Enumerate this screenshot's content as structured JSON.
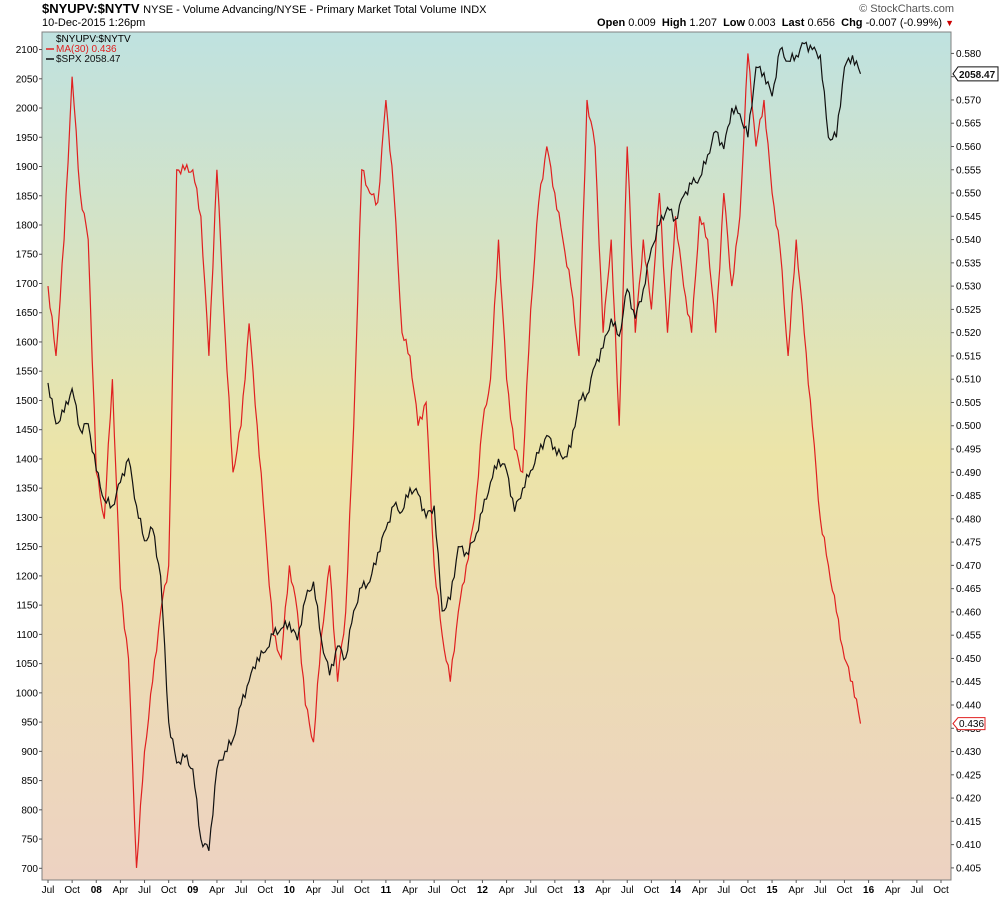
{
  "header": {
    "symbol": "$NYUPV:$NYTV",
    "description": "NYSE - Volume Advancing/NYSE - Primary Market Total Volume",
    "exchange": "INDX",
    "date": "10-Dec-2015 1:26pm",
    "brand": "© StockCharts.com",
    "quote": {
      "open_label": "Open",
      "open": "0.009",
      "high_label": "High",
      "high": "1.207",
      "low_label": "Low",
      "low": "0.003",
      "last_label": "Last",
      "last": "0.656",
      "chg_label": "Chg",
      "chg": "-0.007 (-0.99%)"
    }
  },
  "colors": {
    "ratio": "#e02020",
    "spx": "#111111",
    "bg_top": "#bfe2e0",
    "bg_mid": "#ece4a8",
    "bg_bottom": "#edd2c2"
  },
  "chart_data": {
    "type": "line",
    "legend": [
      {
        "label": "$NYUPV:$NYTV",
        "color": "none"
      },
      {
        "label": "MA(30) 0.436",
        "color": "#e02020"
      },
      {
        "label": "$SPX 2058.47",
        "color": "#111111"
      }
    ],
    "legend_position": "top-left",
    "grid": false,
    "left_axis": {
      "ticks": [
        700,
        750,
        800,
        850,
        900,
        950,
        1000,
        1050,
        1100,
        1150,
        1200,
        1250,
        1300,
        1350,
        1400,
        1450,
        1500,
        1550,
        1600,
        1650,
        1700,
        1750,
        1800,
        1850,
        1900,
        1950,
        2000,
        2050,
        2100
      ],
      "range": [
        680,
        2130
      ]
    },
    "right_axis": {
      "ticks": [
        "0.405",
        "0.410",
        "0.415",
        "0.420",
        "0.425",
        "0.430",
        "0.435",
        "0.440",
        "0.445",
        "0.450",
        "0.455",
        "0.460",
        "0.465",
        "0.470",
        "0.475",
        "0.480",
        "0.485",
        "0.490",
        "0.495",
        "0.500",
        "0.505",
        "0.510",
        "0.515",
        "0.520",
        "0.525",
        "0.530",
        "0.535",
        "0.540",
        "0.545",
        "0.550",
        "0.555",
        "0.560",
        "0.565",
        "0.570",
        "0.575",
        "0.580"
      ],
      "range": [
        0.4024,
        0.5846
      ]
    },
    "current_labels": {
      "spx": "2058.47",
      "ratio": "0.436"
    },
    "x_axis": {
      "labels": [
        "Jul",
        "Oct",
        "08",
        "Apr",
        "Jul",
        "Oct",
        "09",
        "Apr",
        "Jul",
        "Oct",
        "10",
        "Apr",
        "Jul",
        "Oct",
        "11",
        "Apr",
        "Jul",
        "Oct",
        "12",
        "Apr",
        "Jul",
        "Oct",
        "13",
        "Apr",
        "Jul",
        "Oct",
        "14",
        "Apr",
        "Jul",
        "Oct",
        "15",
        "Apr",
        "Jul",
        "Oct",
        "16",
        "Apr",
        "Jul",
        "Oct"
      ],
      "year_labels": [
        "08",
        "09",
        "10",
        "11",
        "12",
        "13",
        "14",
        "15",
        "16"
      ],
      "start": "2007-07",
      "end": "2016-10"
    },
    "series": [
      {
        "name": "$SPX 2058.47",
        "axis": "left",
        "x": [
          "2007-07",
          "2007-08",
          "2007-09",
          "2007-10",
          "2007-11",
          "2007-12",
          "2008-01",
          "2008-02",
          "2008-03",
          "2008-04",
          "2008-05",
          "2008-06",
          "2008-07",
          "2008-08",
          "2008-09",
          "2008-10",
          "2008-11",
          "2008-12",
          "2009-01",
          "2009-02",
          "2009-03",
          "2009-04",
          "2009-05",
          "2009-06",
          "2009-07",
          "2009-08",
          "2009-09",
          "2009-10",
          "2009-11",
          "2009-12",
          "2010-01",
          "2010-02",
          "2010-03",
          "2010-04",
          "2010-05",
          "2010-06",
          "2010-07",
          "2010-08",
          "2010-09",
          "2010-10",
          "2010-11",
          "2010-12",
          "2011-01",
          "2011-02",
          "2011-03",
          "2011-04",
          "2011-05",
          "2011-06",
          "2011-07",
          "2011-08",
          "2011-09",
          "2011-10",
          "2011-11",
          "2011-12",
          "2012-01",
          "2012-02",
          "2012-03",
          "2012-04",
          "2012-05",
          "2012-06",
          "2012-07",
          "2012-08",
          "2012-09",
          "2012-10",
          "2012-11",
          "2012-12",
          "2013-01",
          "2013-02",
          "2013-03",
          "2013-04",
          "2013-05",
          "2013-06",
          "2013-07",
          "2013-08",
          "2013-09",
          "2013-10",
          "2013-11",
          "2013-12",
          "2014-01",
          "2014-02",
          "2014-03",
          "2014-04",
          "2014-05",
          "2014-06",
          "2014-07",
          "2014-08",
          "2014-09",
          "2014-10",
          "2014-11",
          "2014-12",
          "2015-01",
          "2015-02",
          "2015-03",
          "2015-04",
          "2015-05",
          "2015-06",
          "2015-07",
          "2015-08",
          "2015-09",
          "2015-10",
          "2015-11",
          "2015-12"
        ],
        "values": [
          1530,
          1460,
          1480,
          1520,
          1450,
          1460,
          1380,
          1330,
          1320,
          1360,
          1400,
          1320,
          1260,
          1280,
          1200,
          950,
          880,
          890,
          870,
          750,
          730,
          870,
          900,
          920,
          980,
          1020,
          1060,
          1070,
          1100,
          1110,
          1120,
          1090,
          1160,
          1190,
          1090,
          1030,
          1080,
          1060,
          1140,
          1180,
          1190,
          1240,
          1280,
          1320,
          1310,
          1350,
          1340,
          1300,
          1320,
          1140,
          1160,
          1250,
          1240,
          1260,
          1310,
          1360,
          1400,
          1380,
          1310,
          1350,
          1380,
          1410,
          1440,
          1420,
          1400,
          1420,
          1500,
          1510,
          1560,
          1590,
          1640,
          1610,
          1690,
          1640,
          1690,
          1760,
          1800,
          1830,
          1810,
          1850,
          1870,
          1880,
          1920,
          1960,
          1930,
          2000,
          1990,
          1950,
          2070,
          2060,
          2020,
          2100,
          2080,
          2090,
          2110,
          2100,
          2090,
          1950,
          1950,
          2070,
          2090,
          2058.47
        ]
      },
      {
        "name": "MA(30) 0.436",
        "axis": "right",
        "x": [
          "2007-07",
          "2007-08",
          "2007-09",
          "2007-10",
          "2007-11",
          "2007-12",
          "2008-01",
          "2008-02",
          "2008-03",
          "2008-04",
          "2008-05",
          "2008-06",
          "2008-07",
          "2008-08",
          "2008-09",
          "2008-10",
          "2008-11",
          "2008-12",
          "2009-01",
          "2009-02",
          "2009-03",
          "2009-04",
          "2009-05",
          "2009-06",
          "2009-07",
          "2009-08",
          "2009-09",
          "2009-10",
          "2009-11",
          "2009-12",
          "2010-01",
          "2010-02",
          "2010-03",
          "2010-04",
          "2010-05",
          "2010-06",
          "2010-07",
          "2010-08",
          "2010-09",
          "2010-10",
          "2010-11",
          "2010-12",
          "2011-01",
          "2011-02",
          "2011-03",
          "2011-04",
          "2011-05",
          "2011-06",
          "2011-07",
          "2011-08",
          "2011-09",
          "2011-10",
          "2011-11",
          "2011-12",
          "2012-01",
          "2012-02",
          "2012-03",
          "2012-04",
          "2012-05",
          "2012-06",
          "2012-07",
          "2012-08",
          "2012-09",
          "2012-10",
          "2012-11",
          "2012-12",
          "2013-01",
          "2013-02",
          "2013-03",
          "2013-04",
          "2013-05",
          "2013-06",
          "2013-07",
          "2013-08",
          "2013-09",
          "2013-10",
          "2013-11",
          "2013-12",
          "2014-01",
          "2014-02",
          "2014-03",
          "2014-04",
          "2014-05",
          "2014-06",
          "2014-07",
          "2014-08",
          "2014-09",
          "2014-10",
          "2014-11",
          "2014-12",
          "2015-01",
          "2015-02",
          "2015-03",
          "2015-04",
          "2015-05",
          "2015-06",
          "2015-07",
          "2015-08",
          "2015-09",
          "2015-10",
          "2015-11",
          "2015-12"
        ],
        "values": [
          0.53,
          0.515,
          0.54,
          0.575,
          0.55,
          0.54,
          0.49,
          0.48,
          0.51,
          0.465,
          0.45,
          0.405,
          0.43,
          0.445,
          0.46,
          0.47,
          0.555,
          0.555,
          0.555,
          0.545,
          0.515,
          0.555,
          0.52,
          0.49,
          0.5,
          0.522,
          0.5,
          0.478,
          0.455,
          0.45,
          0.47,
          0.46,
          0.44,
          0.432,
          0.455,
          0.47,
          0.445,
          0.46,
          0.5,
          0.555,
          0.55,
          0.548,
          0.57,
          0.55,
          0.52,
          0.515,
          0.5,
          0.505,
          0.47,
          0.455,
          0.445,
          0.46,
          0.47,
          0.48,
          0.5,
          0.51,
          0.54,
          0.51,
          0.495,
          0.49,
          0.525,
          0.548,
          0.56,
          0.55,
          0.54,
          0.53,
          0.515,
          0.57,
          0.56,
          0.52,
          0.54,
          0.5,
          0.56,
          0.52,
          0.54,
          0.525,
          0.55,
          0.52,
          0.545,
          0.53,
          0.52,
          0.545,
          0.54,
          0.52,
          0.55,
          0.53,
          0.545,
          0.58,
          0.56,
          0.57,
          0.55,
          0.538,
          0.515,
          0.54,
          0.52,
          0.5,
          0.48,
          0.47,
          0.46,
          0.45,
          0.445,
          0.436
        ]
      }
    ]
  }
}
